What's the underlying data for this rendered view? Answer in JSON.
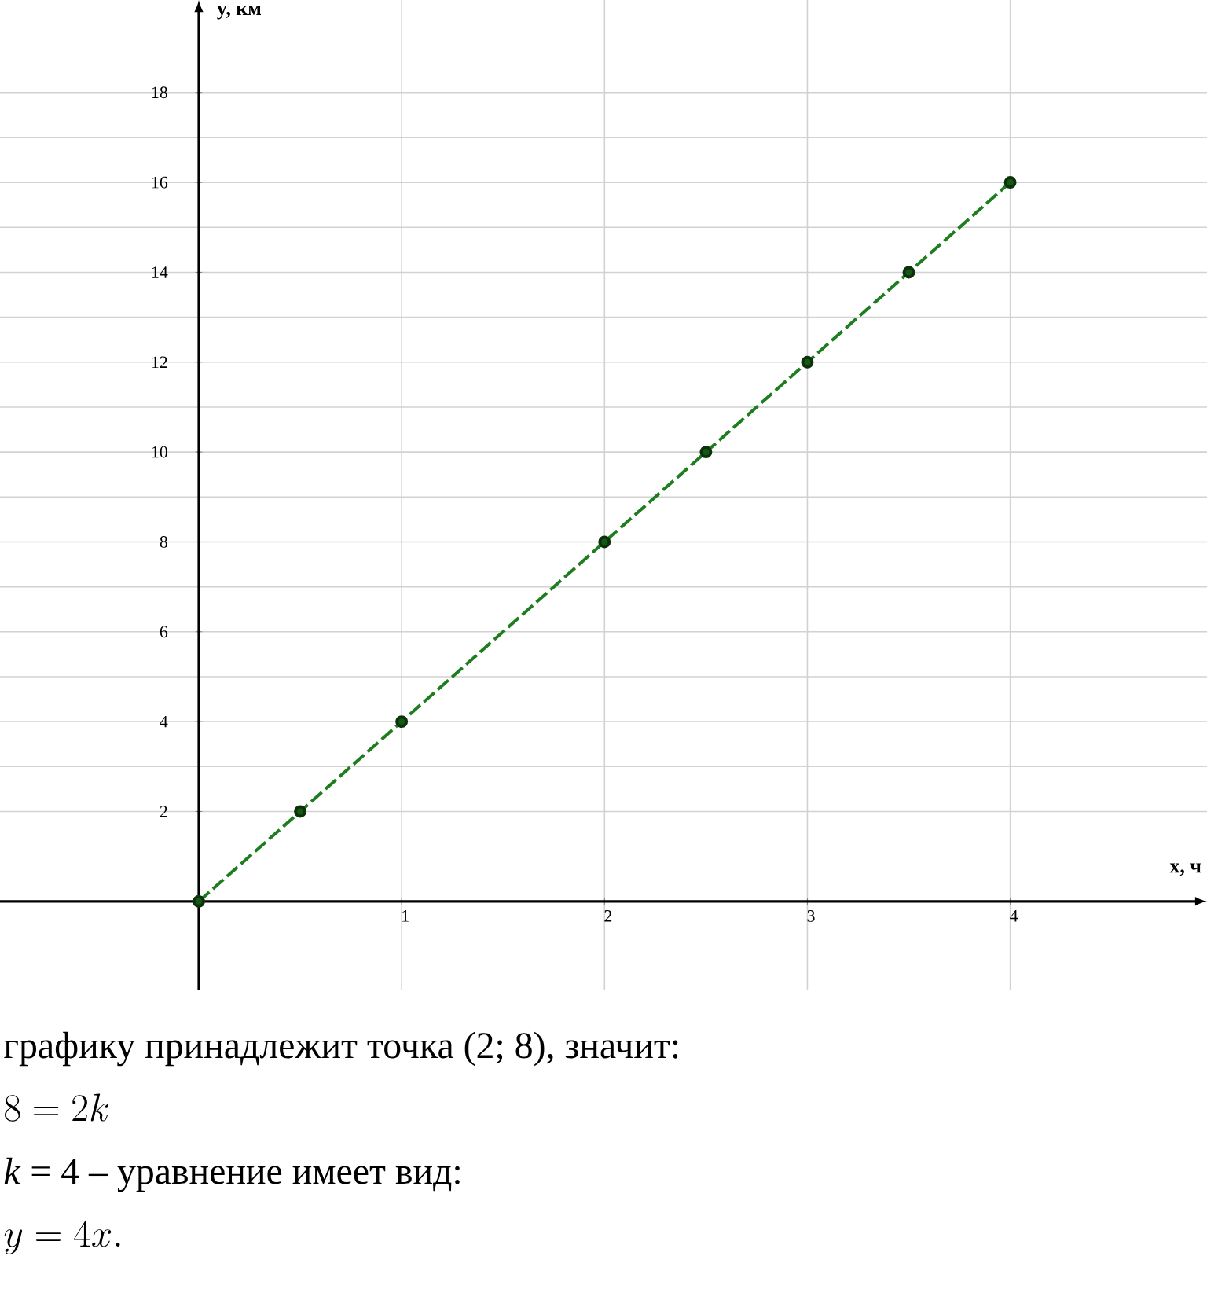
{
  "chart_data": {
    "type": "line",
    "xlabel": "x, ч",
    "ylabel": "y, км",
    "x": [
      0,
      0.5,
      1,
      2,
      2.5,
      3,
      3.5,
      4
    ],
    "series": [
      {
        "color": "#1e7d1e",
        "values": [
          0,
          2,
          4,
          8,
          10,
          12,
          14,
          16
        ]
      }
    ],
    "xlim": [
      -0.98,
      4.97
    ],
    "ylim": [
      -1.98,
      20.06
    ],
    "xticks": [
      1,
      2,
      3,
      4
    ],
    "yticks": [
      2,
      4,
      6,
      8,
      10,
      12,
      14,
      16,
      18
    ],
    "grid": true,
    "marker": "circle",
    "line_style": "dashed",
    "annotations": [
      "графику принадлежит точка  (2; 8), значит:",
      "8 = 2k",
      "*k* = 4 – уравнение имеет вид:",
      "y = 4x."
    ]
  }
}
